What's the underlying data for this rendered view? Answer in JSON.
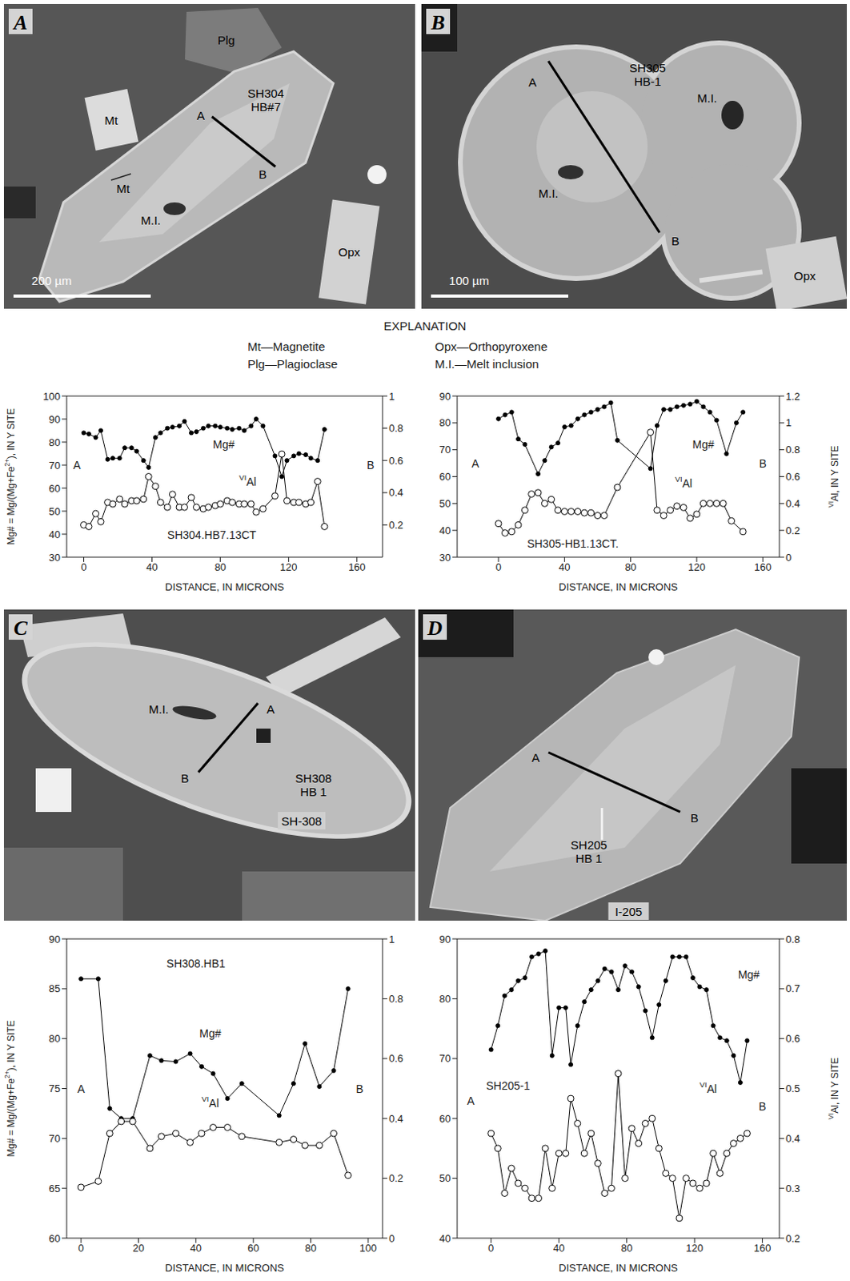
{
  "panels": [
    {
      "letter": "A",
      "labels": [
        "Plg",
        "Mt",
        "SH304 HB#7",
        "A",
        "B",
        "Mt",
        "M.I.",
        "Opx"
      ],
      "scale_bar": "200 µm"
    },
    {
      "letter": "B",
      "labels": [
        "SH305 HB-1",
        "M.I.",
        "M.I.",
        "A",
        "B",
        "Opx"
      ],
      "scale_bar": "100 µm"
    },
    {
      "letter": "C",
      "labels": [
        "M.I.",
        "A",
        "B",
        "SH308 HB 1",
        "SH-308"
      ]
    },
    {
      "letter": "D",
      "labels": [
        "A",
        "B",
        "SH205 HB 1",
        "I-205"
      ]
    }
  ],
  "explanation": {
    "title": "EXPLANATION",
    "items": [
      "Mt—Magnetite",
      "Plg—Plagioclase",
      "Opx—Orthopyroxene",
      "M.I.—Melt inclusion"
    ]
  },
  "chart_data": [
    {
      "type": "line",
      "annotations": [
        "A",
        "B",
        "SH304.HB7.13CT"
      ],
      "xlabel": "DISTANCE, IN MICRONS",
      "ylabel": "Mg# = Mg/(Mg+Fe2+), IN Y SITE",
      "xlim": [
        -10,
        175
      ],
      "xticks": [
        0,
        40,
        80,
        120,
        160
      ],
      "ylim": [
        30,
        100
      ],
      "yticks": [
        30,
        40,
        50,
        60,
        70,
        80,
        90,
        100
      ],
      "y2lim": [
        0,
        1
      ],
      "y2ticks": [
        0.2,
        0.4,
        0.6,
        0.8,
        1
      ],
      "grid": false,
      "series": [
        {
          "name": "Mg#",
          "color": "#000000",
          "marker": "dot",
          "x": [
            0,
            3,
            7,
            10,
            14,
            17,
            21,
            24,
            28,
            31,
            35,
            38,
            42,
            45,
            49,
            52,
            56,
            59,
            63,
            66,
            70,
            73,
            77,
            80,
            84,
            87,
            91,
            94,
            98,
            101,
            105,
            112,
            116,
            119,
            123,
            126,
            130,
            133,
            137,
            141
          ],
          "values": [
            84,
            83.5,
            82,
            85,
            72.5,
            73,
            73,
            77.5,
            77.5,
            76,
            72,
            69,
            82,
            84,
            86,
            86.5,
            87,
            89,
            84,
            84.5,
            86,
            87,
            87,
            86.5,
            86,
            85.5,
            86,
            85,
            87,
            90,
            87,
            74,
            65,
            72,
            74,
            75,
            74.5,
            73,
            72,
            85.5
          ]
        },
        {
          "name": "VIAl",
          "color": "#000000",
          "marker": "open_circle",
          "axis": "y2",
          "x": [
            0,
            3,
            7,
            10,
            14,
            17,
            21,
            24,
            28,
            31,
            35,
            38,
            42,
            45,
            49,
            52,
            56,
            59,
            63,
            66,
            70,
            73,
            77,
            80,
            84,
            87,
            91,
            94,
            98,
            101,
            105,
            112,
            116,
            119,
            123,
            126,
            130,
            133,
            137,
            141
          ],
          "values": [
            0.2,
            0.19,
            0.27,
            0.22,
            0.34,
            0.33,
            0.36,
            0.33,
            0.35,
            0.35,
            0.36,
            0.5,
            0.44,
            0.34,
            0.31,
            0.39,
            0.31,
            0.31,
            0.37,
            0.31,
            0.3,
            0.31,
            0.32,
            0.33,
            0.35,
            0.34,
            0.33,
            0.33,
            0.33,
            0.28,
            0.3,
            0.38,
            0.64,
            0.35,
            0.34,
            0.34,
            0.33,
            0.34,
            0.47,
            0.19
          ]
        }
      ]
    },
    {
      "type": "line",
      "annotations": [
        "A",
        "B",
        "SH305-HB1.13CT."
      ],
      "xlabel": "DISTANCE, IN MICRONS",
      "y2label": "VIAl, IN Y SITE",
      "xlim": [
        -25,
        170
      ],
      "xticks": [
        0,
        40,
        80,
        120,
        160
      ],
      "ylim": [
        30,
        90
      ],
      "yticks": [
        30,
        40,
        50,
        60,
        70,
        80,
        90
      ],
      "y2lim": [
        0,
        1.2
      ],
      "y2ticks": [
        0,
        0.2,
        0.4,
        0.6,
        0.8,
        1,
        1.2
      ],
      "grid": false,
      "series": [
        {
          "name": "Mg#",
          "color": "#000000",
          "marker": "dot",
          "x": [
            0,
            4,
            8,
            12,
            16,
            24,
            28,
            32,
            36,
            40,
            44,
            48,
            52,
            56,
            60,
            64,
            68,
            72,
            92,
            96,
            100,
            104,
            108,
            112,
            116,
            120,
            124,
            128,
            132,
            138,
            144,
            148
          ],
          "values": [
            81.5,
            83,
            84,
            74,
            72,
            61,
            66,
            71,
            72.5,
            78.5,
            79,
            81.5,
            83,
            84,
            85,
            86,
            87.5,
            73.5,
            63,
            79,
            85,
            85,
            86,
            86.5,
            87,
            88,
            86,
            84,
            81,
            68.5,
            80,
            84
          ]
        },
        {
          "name": "VIAl",
          "color": "#000000",
          "marker": "open_circle",
          "axis": "y2",
          "x": [
            0,
            4,
            8,
            12,
            16,
            20,
            24,
            28,
            32,
            36,
            40,
            44,
            48,
            52,
            56,
            60,
            64,
            72,
            92,
            96,
            100,
            104,
            108,
            112,
            116,
            120,
            124,
            128,
            132,
            136,
            141,
            148
          ],
          "values": [
            0.25,
            0.18,
            0.19,
            0.24,
            0.35,
            0.47,
            0.48,
            0.4,
            0.43,
            0.35,
            0.34,
            0.34,
            0.34,
            0.33,
            0.33,
            0.31,
            0.31,
            0.52,
            0.93,
            0.35,
            0.31,
            0.35,
            0.38,
            0.37,
            0.29,
            0.32,
            0.4,
            0.4,
            0.4,
            0.4,
            0.27,
            0.19
          ]
        }
      ]
    },
    {
      "type": "line",
      "annotations": [
        "A",
        "B",
        "SH308.HB1"
      ],
      "xlabel": "DISTANCE, IN MICRONS",
      "ylabel": "Mg# = Mg/(Mg+Fe2+), IN Y SITE",
      "xlim": [
        -5,
        105
      ],
      "xticks": [
        0,
        20,
        40,
        60,
        80,
        100
      ],
      "ylim": [
        60,
        90
      ],
      "yticks": [
        60,
        65,
        70,
        75,
        80,
        85,
        90
      ],
      "y2lim": [
        0,
        1
      ],
      "y2ticks": [
        0,
        0.2,
        0.4,
        0.6,
        0.8,
        1
      ],
      "grid": false,
      "series": [
        {
          "name": "Mg#",
          "color": "#000000",
          "marker": "dot",
          "x": [
            0,
            6,
            10,
            14,
            18,
            24,
            28,
            33,
            38,
            42,
            46,
            51,
            56,
            69,
            74,
            78,
            83,
            88,
            93
          ],
          "values": [
            86,
            86,
            73,
            72,
            72,
            78.3,
            77.8,
            77.7,
            78.5,
            77.2,
            76.5,
            74,
            75.5,
            72.3,
            75.5,
            79.5,
            75.2,
            76.8,
            85
          ]
        },
        {
          "name": "VIAl",
          "color": "#000000",
          "marker": "open_circle",
          "axis": "y2",
          "x": [
            0,
            6,
            10,
            14,
            18,
            24,
            28,
            33,
            38,
            42,
            46,
            51,
            56,
            69,
            74,
            78,
            83,
            88,
            93
          ],
          "values": [
            0.17,
            0.19,
            0.35,
            0.39,
            0.39,
            0.3,
            0.34,
            0.35,
            0.32,
            0.35,
            0.37,
            0.37,
            0.34,
            0.32,
            0.33,
            0.31,
            0.31,
            0.35,
            0.21
          ]
        }
      ]
    },
    {
      "type": "line",
      "annotations": [
        "A",
        "B",
        "SH205-1"
      ],
      "xlabel": "DISTANCE, IN MICRONS",
      "y2label": "VIAl, IN Y SITE",
      "xlim": [
        -20,
        170
      ],
      "xticks": [
        0,
        40,
        80,
        120,
        160
      ],
      "ylim": [
        40,
        90
      ],
      "yticks": [
        40,
        50,
        60,
        70,
        80,
        90
      ],
      "y2lim": [
        0.2,
        0.8
      ],
      "y2ticks": [
        0.2,
        0.3,
        0.4,
        0.5,
        0.6,
        0.7,
        0.8
      ],
      "grid": false,
      "series": [
        {
          "name": "Mg#",
          "color": "#000000",
          "marker": "dot",
          "x": [
            0,
            4,
            8,
            12,
            16,
            20,
            24,
            28,
            32,
            36,
            40,
            44,
            47,
            51,
            55,
            59,
            63,
            67,
            71,
            75,
            79,
            83,
            87,
            91,
            95,
            99,
            103,
            107,
            111,
            115,
            119,
            123,
            127,
            131,
            135,
            139,
            143,
            147,
            151
          ],
          "values": [
            71.5,
            75.5,
            80.5,
            81.5,
            83,
            83.5,
            87,
            87.5,
            88,
            70.5,
            78.5,
            78.5,
            69,
            75.5,
            79.5,
            81.5,
            83,
            85,
            84.5,
            81.5,
            85.5,
            84.5,
            82,
            78,
            73.5,
            79,
            83,
            87,
            87,
            87,
            83.5,
            82,
            81.5,
            75.5,
            73.5,
            73,
            70.5,
            66,
            73
          ]
        },
        {
          "name": "VIAl",
          "color": "#000000",
          "marker": "open_circle",
          "axis": "y2",
          "x": [
            0,
            4,
            8,
            12,
            16,
            20,
            24,
            28,
            32,
            36,
            40,
            44,
            47,
            51,
            55,
            59,
            63,
            67,
            71,
            75,
            79,
            83,
            87,
            91,
            95,
            99,
            103,
            107,
            111,
            115,
            119,
            123,
            127,
            131,
            135,
            139,
            143,
            147,
            151
          ],
          "values": [
            0.41,
            0.38,
            0.29,
            0.34,
            0.31,
            0.3,
            0.28,
            0.28,
            0.38,
            0.3,
            0.37,
            0.37,
            0.48,
            0.43,
            0.37,
            0.41,
            0.35,
            0.29,
            0.3,
            0.53,
            0.32,
            0.42,
            0.39,
            0.43,
            0.44,
            0.38,
            0.33,
            0.32,
            0.24,
            0.32,
            0.31,
            0.3,
            0.31,
            0.37,
            0.33,
            0.37,
            0.39,
            0.4,
            0.41
          ]
        }
      ]
    }
  ]
}
